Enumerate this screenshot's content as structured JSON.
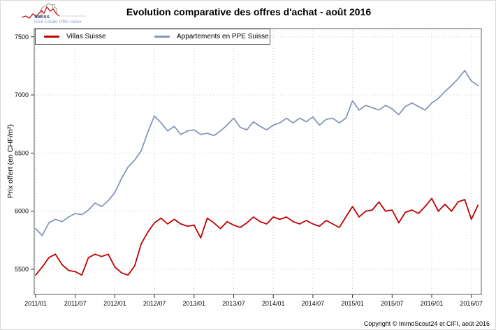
{
  "logo": {
    "name": "Swiss",
    "tagline": "Real Estate Offer Index",
    "navy": "#1a3a6b",
    "light_blue": "#8aa6c8",
    "house_gray": "#a8a8a8",
    "line_red": "#c22020"
  },
  "title": "Evolution comparative des offres d'achat - août 2016",
  "footer": "Copyright © ImmoScout24 et CIFI, août 2016",
  "colors": {
    "villas": "#c00000",
    "appartements": "#8696ba",
    "grid": "#c9c9c9",
    "frame": "#8c8c8c",
    "tick": "#333333",
    "text": "#000000"
  },
  "chart_data": {
    "type": "line",
    "title": "Evolution comparative des offres d'achat - août 2016",
    "xlabel": "",
    "ylabel": "Prix offert (en CHF/m²)",
    "ylim": [
      5280,
      7570
    ],
    "yticks": [
      5500,
      6000,
      6500,
      7000,
      7500
    ],
    "xtick_labels": [
      "2011/01",
      "2011/07",
      "2012/01",
      "2012/07",
      "2013/01",
      "2013/07",
      "2014/01",
      "2014/07",
      "2015/01",
      "2015/07",
      "2016/01",
      "2016/07"
    ],
    "grid": "dotted",
    "legend_position": "top-left",
    "x": [
      "2011/01",
      "2011/02",
      "2011/03",
      "2011/04",
      "2011/05",
      "2011/06",
      "2011/07",
      "2011/08",
      "2011/09",
      "2011/10",
      "2011/11",
      "2011/12",
      "2012/01",
      "2012/02",
      "2012/03",
      "2012/04",
      "2012/05",
      "2012/06",
      "2012/07",
      "2012/08",
      "2012/09",
      "2012/10",
      "2012/11",
      "2012/12",
      "2013/01",
      "2013/02",
      "2013/03",
      "2013/04",
      "2013/05",
      "2013/06",
      "2013/07",
      "2013/08",
      "2013/09",
      "2013/10",
      "2013/11",
      "2013/12",
      "2014/01",
      "2014/02",
      "2014/03",
      "2014/04",
      "2014/05",
      "2014/06",
      "2014/07",
      "2014/08",
      "2014/09",
      "2014/10",
      "2014/11",
      "2014/12",
      "2015/01",
      "2015/02",
      "2015/03",
      "2015/04",
      "2015/05",
      "2015/06",
      "2015/07",
      "2015/08",
      "2015/09",
      "2015/10",
      "2015/11",
      "2015/12",
      "2016/01",
      "2016/02",
      "2016/03",
      "2016/04",
      "2016/05",
      "2016/06",
      "2016/07",
      "2016/08"
    ],
    "series": [
      {
        "name": "Villas Suisse",
        "color": "#c00000",
        "values": [
          5450,
          5520,
          5600,
          5630,
          5540,
          5490,
          5480,
          5450,
          5600,
          5630,
          5610,
          5630,
          5520,
          5470,
          5450,
          5530,
          5720,
          5820,
          5900,
          5940,
          5890,
          5930,
          5890,
          5870,
          5880,
          5770,
          5940,
          5900,
          5850,
          5910,
          5880,
          5860,
          5900,
          5950,
          5910,
          5890,
          5950,
          5930,
          5950,
          5910,
          5890,
          5920,
          5890,
          5870,
          5920,
          5890,
          5860,
          5950,
          6040,
          5950,
          6000,
          6010,
          6080,
          6000,
          6010,
          5900,
          5990,
          6010,
          5980,
          6040,
          6110,
          6000,
          6060,
          6000,
          6080,
          6100,
          5930,
          6050
        ]
      },
      {
        "name": "Appartements en PPE Suisse",
        "color": "#8696ba",
        "values": [
          5850,
          5790,
          5900,
          5930,
          5910,
          5950,
          5980,
          5970,
          6010,
          6070,
          6040,
          6090,
          6160,
          6280,
          6380,
          6440,
          6520,
          6680,
          6820,
          6760,
          6690,
          6730,
          6660,
          6690,
          6700,
          6660,
          6670,
          6650,
          6690,
          6740,
          6800,
          6720,
          6700,
          6770,
          6730,
          6700,
          6740,
          6760,
          6800,
          6760,
          6800,
          6770,
          6810,
          6740,
          6790,
          6800,
          6760,
          6800,
          6950,
          6870,
          6910,
          6890,
          6870,
          6910,
          6880,
          6830,
          6900,
          6930,
          6900,
          6870,
          6930,
          6970,
          7030,
          7080,
          7140,
          7210,
          7120,
          7080
        ]
      }
    ]
  }
}
